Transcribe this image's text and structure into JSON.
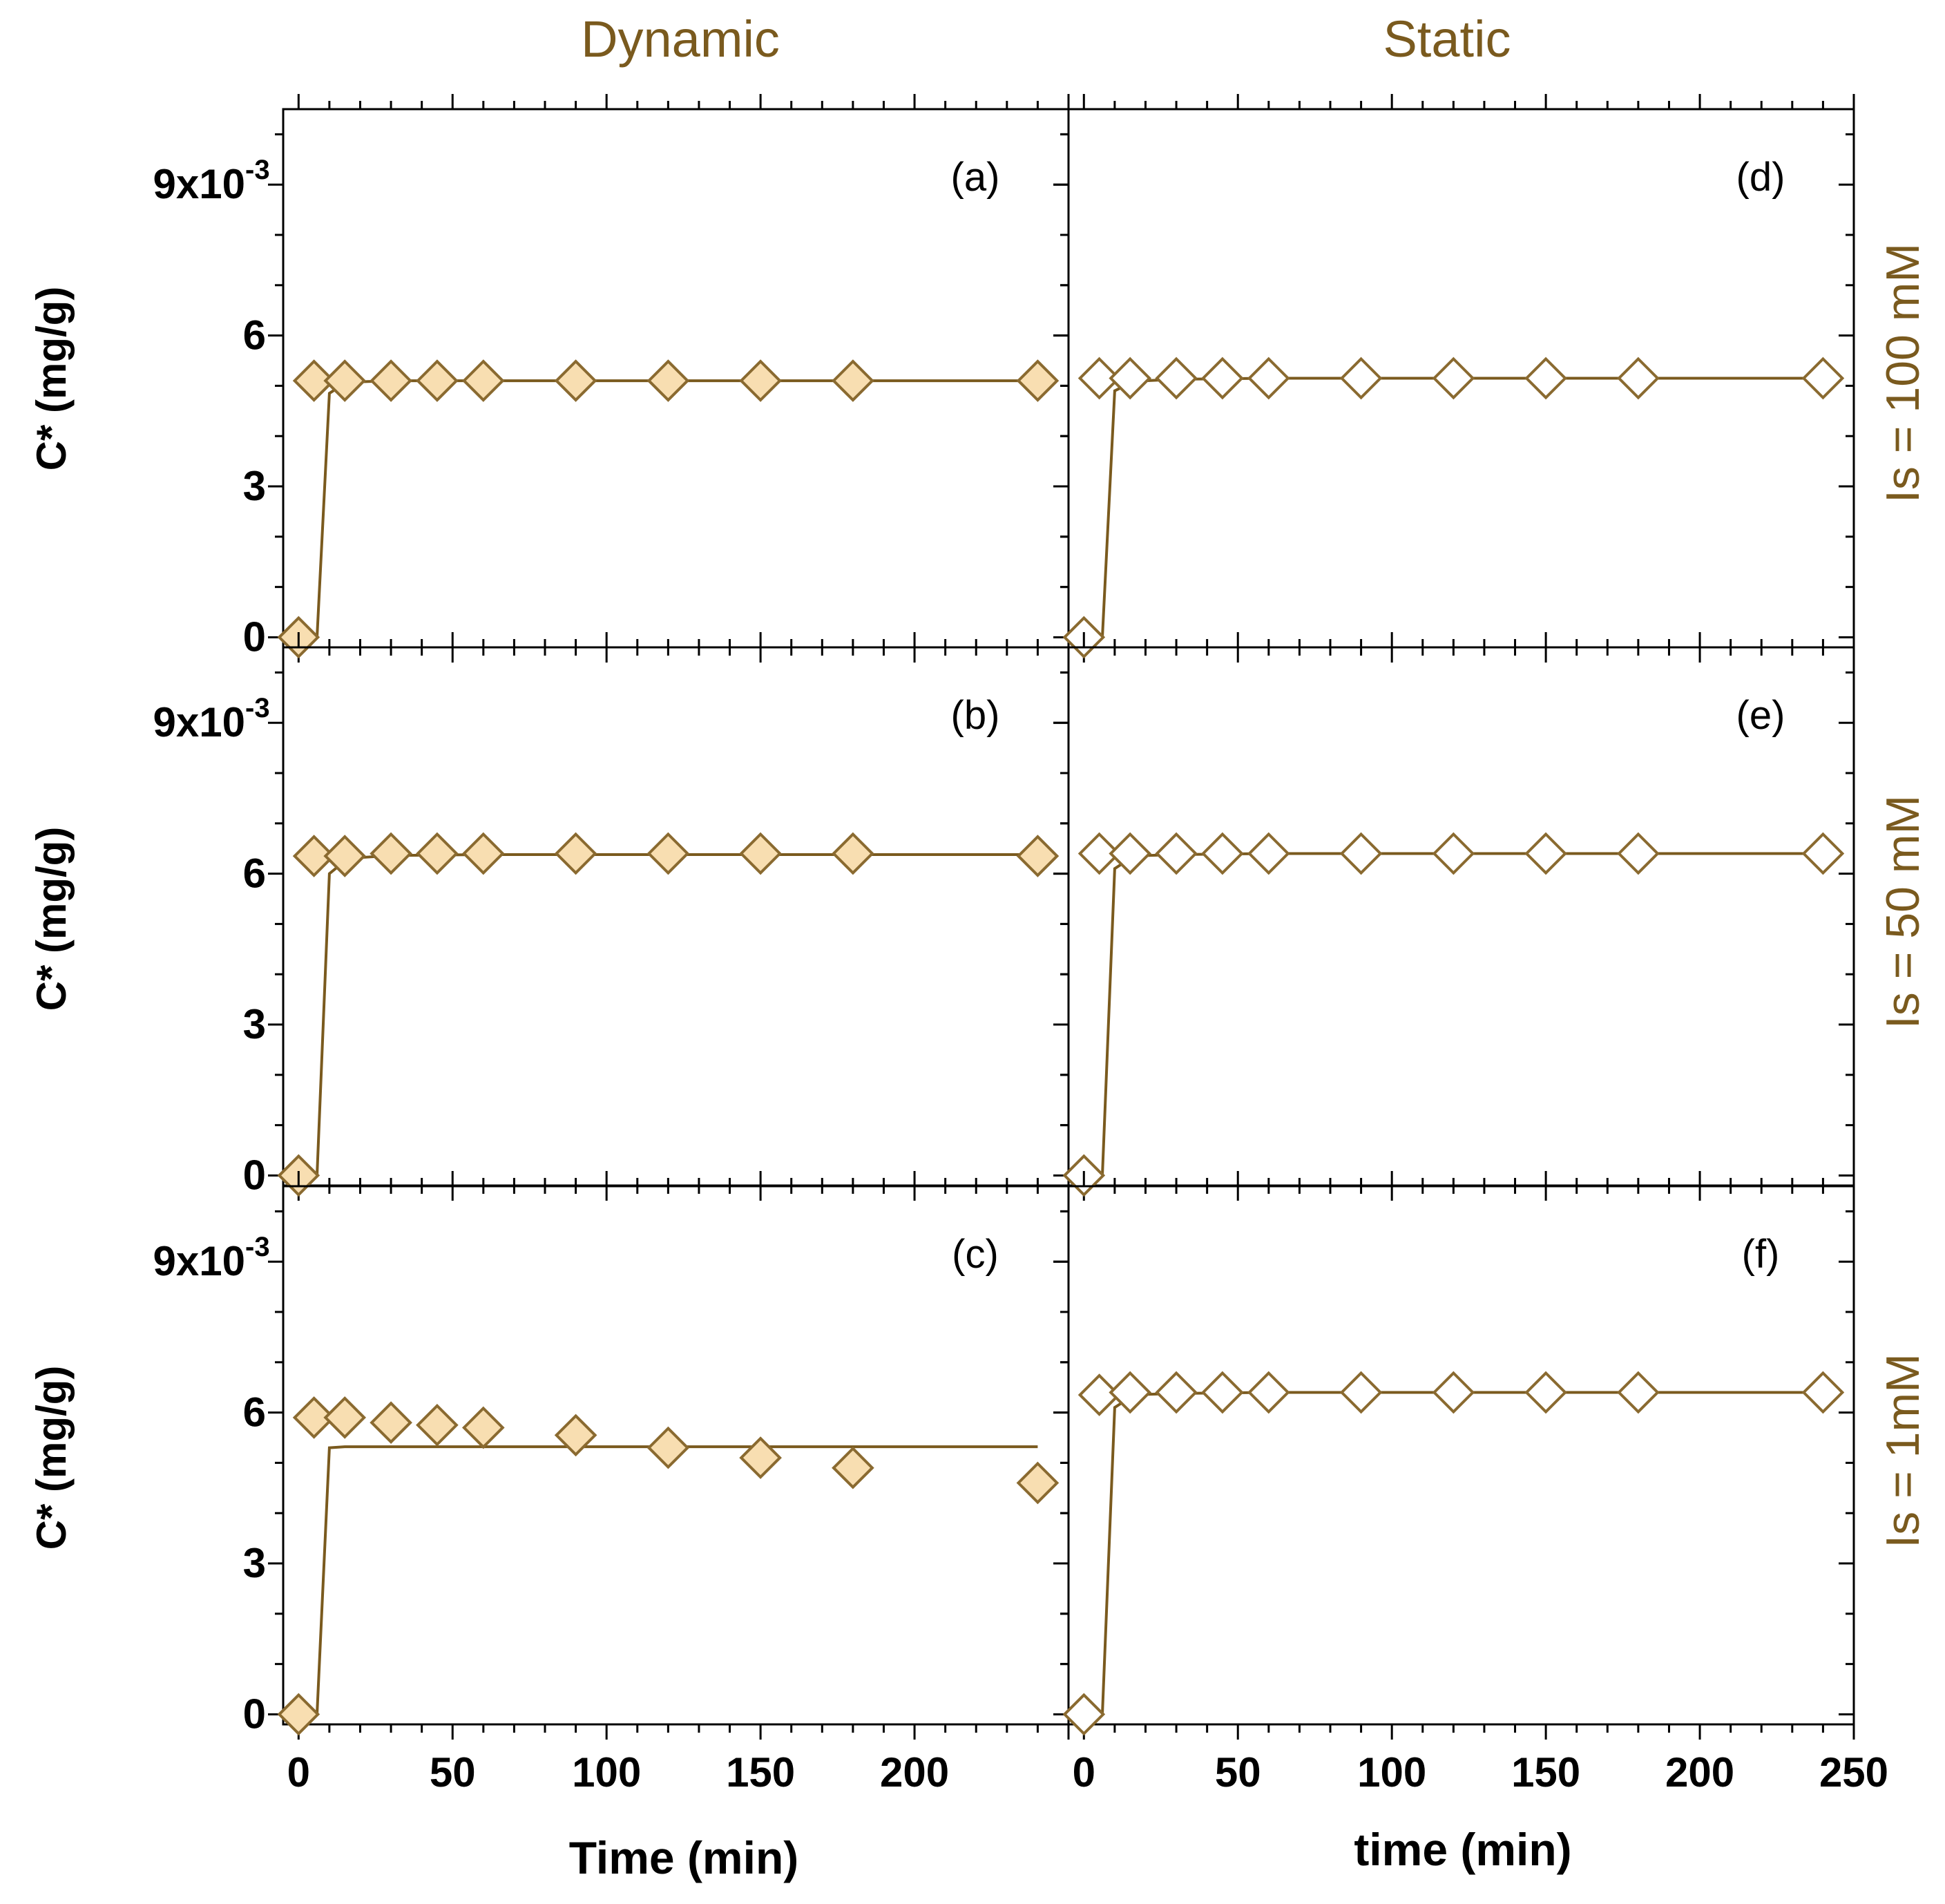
{
  "figure": {
    "col_titles": [
      "Dynamic",
      "Static"
    ],
    "row_labels": [
      "Is = 100 mM",
      "Is = 50 mM",
      "Is = 1mM"
    ],
    "colors": {
      "line": "#7a5a1e",
      "marker_edge": "#8a6a30",
      "marker_fill": "#f8deb1",
      "title": "#7a5a1e"
    }
  },
  "chart_data": [
    {
      "id": "a",
      "panel_label": "(a)",
      "type": "scatter",
      "condition": "Dynamic",
      "ionic_strength": "Is = 100 mM",
      "title": "",
      "xlabel": "Time (min)",
      "ylabel": "C* (mg/g)",
      "y_ticks": [
        "0",
        "3",
        "6",
        "9x10"
      ],
      "y_exponent": "-3",
      "x": [
        0,
        5,
        15,
        30,
        45,
        60,
        90,
        120,
        150,
        180,
        240
      ],
      "y": [
        0.0,
        5.1,
        5.1,
        5.1,
        5.1,
        5.1,
        5.1,
        5.1,
        5.1,
        5.1,
        5.1
      ],
      "fit_x": [
        0,
        6,
        10,
        15,
        20,
        30,
        60,
        120,
        240
      ],
      "fit_y": [
        0.0,
        0.0,
        4.85,
        5.05,
        5.08,
        5.1,
        5.1,
        5.1,
        5.1
      ],
      "marker": "filled-diamond",
      "xlim": [
        -5,
        250
      ],
      "ylim": [
        -0.2,
        10.5
      ]
    },
    {
      "id": "b",
      "panel_label": "(b)",
      "type": "scatter",
      "condition": "Dynamic",
      "ionic_strength": "Is = 50 mM",
      "title": "",
      "xlabel": "Time (min)",
      "ylabel": "C* (mg/g)",
      "y_ticks": [
        "0",
        "3",
        "6",
        "9x10"
      ],
      "y_exponent": "-3",
      "x": [
        0,
        5,
        15,
        30,
        45,
        60,
        90,
        120,
        150,
        180,
        240
      ],
      "y": [
        0.0,
        6.35,
        6.35,
        6.4,
        6.4,
        6.4,
        6.4,
        6.4,
        6.4,
        6.4,
        6.35
      ],
      "fit_x": [
        0,
        6,
        10,
        15,
        20,
        30,
        60,
        120,
        240
      ],
      "fit_y": [
        0.0,
        0.0,
        6.0,
        6.25,
        6.32,
        6.36,
        6.38,
        6.38,
        6.38
      ],
      "marker": "filled-diamond",
      "xlim": [
        -5,
        250
      ],
      "ylim": [
        -0.2,
        10.5
      ]
    },
    {
      "id": "c",
      "panel_label": "(c)",
      "type": "scatter",
      "condition": "Dynamic",
      "ionic_strength": "Is = 1mM",
      "title": "",
      "xlabel": "Time (min)",
      "ylabel": "C* (mg/g)",
      "y_ticks": [
        "0",
        "3",
        "6",
        "9x10"
      ],
      "y_exponent": "-3",
      "x": [
        0,
        5,
        15,
        30,
        45,
        60,
        90,
        120,
        150,
        180,
        240
      ],
      "y": [
        0.0,
        5.9,
        5.9,
        5.8,
        5.75,
        5.7,
        5.55,
        5.3,
        5.1,
        4.9,
        4.6
      ],
      "fit_x": [
        0,
        6,
        10,
        15,
        20,
        30,
        60,
        120,
        240
      ],
      "fit_y": [
        0.0,
        0.0,
        5.3,
        5.32,
        5.32,
        5.32,
        5.32,
        5.32,
        5.32
      ],
      "marker": "filled-diamond",
      "xlim": [
        -5,
        250
      ],
      "ylim": [
        -0.2,
        10.5
      ],
      "x_ticks": [
        "0",
        "50",
        "100",
        "150",
        "200"
      ]
    },
    {
      "id": "d",
      "panel_label": "(d)",
      "type": "scatter",
      "condition": "Static",
      "ionic_strength": "Is = 100 mM",
      "title": "",
      "xlabel": "time (min)",
      "ylabel": "",
      "x": [
        0,
        5,
        15,
        30,
        45,
        60,
        90,
        120,
        150,
        180,
        240
      ],
      "y": [
        0.0,
        5.15,
        5.15,
        5.15,
        5.15,
        5.15,
        5.15,
        5.15,
        5.15,
        5.15,
        5.15
      ],
      "fit_x": [
        0,
        6,
        10,
        15,
        20,
        30,
        60,
        120,
        240
      ],
      "fit_y": [
        0.0,
        0.0,
        4.9,
        5.05,
        5.1,
        5.13,
        5.15,
        5.15,
        5.15
      ],
      "marker": "open-diamond",
      "xlim": [
        -5,
        250
      ],
      "ylim": [
        -0.2,
        10.5
      ]
    },
    {
      "id": "e",
      "panel_label": "(e)",
      "type": "scatter",
      "condition": "Static",
      "ionic_strength": "Is = 50 mM",
      "title": "",
      "xlabel": "time (min)",
      "ylabel": "",
      "x": [
        0,
        5,
        15,
        30,
        45,
        60,
        90,
        120,
        150,
        180,
        240
      ],
      "y": [
        0.0,
        6.4,
        6.4,
        6.4,
        6.4,
        6.4,
        6.4,
        6.4,
        6.4,
        6.4,
        6.4
      ],
      "fit_x": [
        0,
        6,
        10,
        15,
        20,
        30,
        60,
        120,
        240
      ],
      "fit_y": [
        0.0,
        0.0,
        6.1,
        6.3,
        6.36,
        6.38,
        6.4,
        6.4,
        6.4
      ],
      "marker": "open-diamond",
      "xlim": [
        -5,
        250
      ],
      "ylim": [
        -0.2,
        10.5
      ]
    },
    {
      "id": "f",
      "panel_label": "(f)",
      "type": "scatter",
      "condition": "Static",
      "ionic_strength": "Is = 1mM",
      "title": "",
      "xlabel": "time (min)",
      "ylabel": "",
      "x": [
        0,
        5,
        15,
        30,
        45,
        60,
        90,
        120,
        150,
        180,
        240
      ],
      "y": [
        0.0,
        6.35,
        6.4,
        6.4,
        6.4,
        6.4,
        6.4,
        6.4,
        6.4,
        6.4,
        6.4
      ],
      "fit_x": [
        0,
        6,
        10,
        15,
        20,
        30,
        60,
        120,
        240
      ],
      "fit_y": [
        0.0,
        0.0,
        6.1,
        6.3,
        6.36,
        6.38,
        6.4,
        6.4,
        6.4
      ],
      "marker": "open-diamond",
      "xlim": [
        -5,
        250
      ],
      "ylim": [
        -0.2,
        10.5
      ],
      "x_ticks": [
        "0",
        "50",
        "100",
        "150",
        "200",
        "250"
      ]
    }
  ]
}
